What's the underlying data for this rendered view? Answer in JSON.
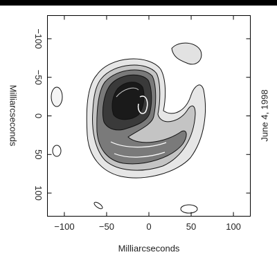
{
  "chart_data": {
    "type": "contour",
    "xlabel": "Milliarcseconds",
    "ylabel": "Milliarcseconds",
    "annotation": "June 4, 1998",
    "xlim": [
      -120,
      120
    ],
    "ylim": [
      -130,
      130
    ],
    "xticks": [
      {
        "value": -100,
        "label": "−100"
      },
      {
        "value": -50,
        "label": "−50"
      },
      0,
      50,
      100
    ],
    "yticks": [
      {
        "value": -100,
        "label": "−100"
      },
      {
        "value": -50,
        "label": "−50"
      },
      0,
      50,
      100
    ],
    "y_inverted": true
  }
}
